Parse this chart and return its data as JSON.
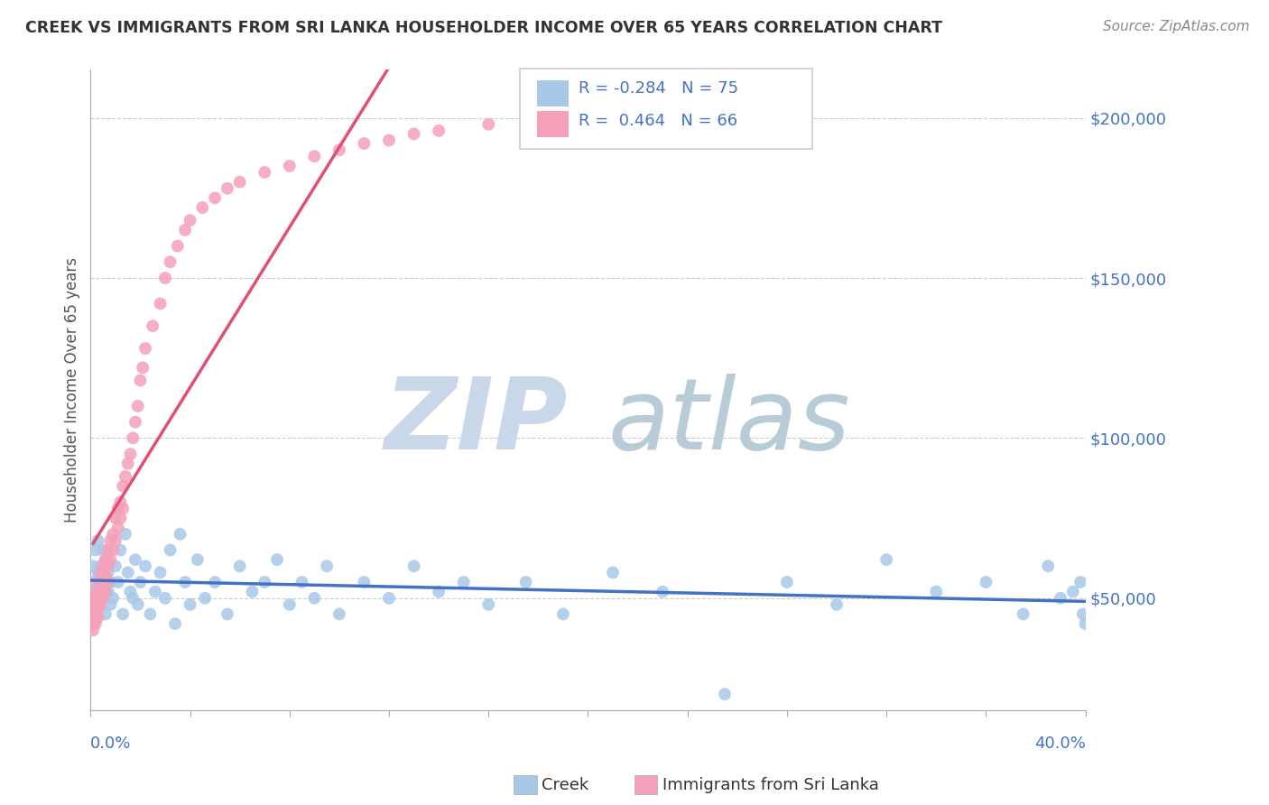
{
  "title": "CREEK VS IMMIGRANTS FROM SRI LANKA HOUSEHOLDER INCOME OVER 65 YEARS CORRELATION CHART",
  "source": "Source: ZipAtlas.com",
  "ylabel": "Householder Income Over 65 years",
  "right_yticks": [
    "$200,000",
    "$150,000",
    "$100,000",
    "$50,000"
  ],
  "right_ytick_vals": [
    200000,
    150000,
    100000,
    50000
  ],
  "xlim": [
    0.0,
    0.4
  ],
  "ylim": [
    15000,
    215000
  ],
  "creek_R": -0.284,
  "creek_N": 75,
  "srilanka_R": 0.464,
  "srilanka_N": 66,
  "creek_color": "#a8c8e8",
  "srilanka_color": "#f5a0b8",
  "creek_line_color": "#4472c4",
  "srilanka_line_color": "#e05070",
  "watermark_zip_color": "#c8d8e8",
  "watermark_atlas_color": "#b8ccd8",
  "creek_x": [
    0.001,
    0.001,
    0.002,
    0.002,
    0.003,
    0.003,
    0.003,
    0.004,
    0.004,
    0.005,
    0.005,
    0.006,
    0.006,
    0.007,
    0.007,
    0.008,
    0.008,
    0.009,
    0.01,
    0.011,
    0.012,
    0.013,
    0.014,
    0.015,
    0.016,
    0.017,
    0.018,
    0.019,
    0.02,
    0.022,
    0.024,
    0.026,
    0.028,
    0.03,
    0.032,
    0.034,
    0.036,
    0.038,
    0.04,
    0.043,
    0.046,
    0.05,
    0.055,
    0.06,
    0.065,
    0.07,
    0.075,
    0.08,
    0.085,
    0.09,
    0.095,
    0.1,
    0.11,
    0.12,
    0.13,
    0.14,
    0.15,
    0.16,
    0.175,
    0.19,
    0.21,
    0.23,
    0.255,
    0.28,
    0.3,
    0.32,
    0.34,
    0.36,
    0.375,
    0.385,
    0.39,
    0.395,
    0.398,
    0.399,
    0.4
  ],
  "creek_y": [
    60000,
    55000,
    65000,
    52000,
    58000,
    68000,
    48000,
    60000,
    50000,
    65000,
    55000,
    45000,
    62000,
    52000,
    58000,
    48000,
    55000,
    50000,
    60000,
    55000,
    65000,
    45000,
    70000,
    58000,
    52000,
    50000,
    62000,
    48000,
    55000,
    60000,
    45000,
    52000,
    58000,
    50000,
    65000,
    42000,
    70000,
    55000,
    48000,
    62000,
    50000,
    55000,
    45000,
    60000,
    52000,
    55000,
    62000,
    48000,
    55000,
    50000,
    60000,
    45000,
    55000,
    50000,
    60000,
    52000,
    55000,
    48000,
    55000,
    45000,
    58000,
    52000,
    20000,
    55000,
    48000,
    62000,
    52000,
    55000,
    45000,
    60000,
    50000,
    52000,
    55000,
    45000,
    42000
  ],
  "srilanka_x": [
    0.001,
    0.001,
    0.001,
    0.001,
    0.001,
    0.002,
    0.002,
    0.002,
    0.002,
    0.003,
    0.003,
    0.003,
    0.003,
    0.004,
    0.004,
    0.004,
    0.005,
    0.005,
    0.005,
    0.006,
    0.006,
    0.006,
    0.007,
    0.007,
    0.007,
    0.008,
    0.008,
    0.009,
    0.009,
    0.01,
    0.01,
    0.011,
    0.011,
    0.012,
    0.012,
    0.013,
    0.013,
    0.014,
    0.015,
    0.016,
    0.017,
    0.018,
    0.019,
    0.02,
    0.021,
    0.022,
    0.025,
    0.028,
    0.03,
    0.032,
    0.035,
    0.038,
    0.04,
    0.045,
    0.05,
    0.055,
    0.06,
    0.07,
    0.08,
    0.09,
    0.1,
    0.11,
    0.12,
    0.13,
    0.14,
    0.16
  ],
  "srilanka_y": [
    50000,
    48000,
    45000,
    42000,
    40000,
    52000,
    48000,
    45000,
    42000,
    55000,
    50000,
    47000,
    44000,
    58000,
    52000,
    48000,
    60000,
    55000,
    50000,
    62000,
    57000,
    52000,
    65000,
    60000,
    55000,
    68000,
    62000,
    70000,
    65000,
    75000,
    68000,
    78000,
    72000,
    80000,
    75000,
    85000,
    78000,
    88000,
    92000,
    95000,
    100000,
    105000,
    110000,
    118000,
    122000,
    128000,
    135000,
    142000,
    150000,
    155000,
    160000,
    165000,
    168000,
    172000,
    175000,
    178000,
    180000,
    183000,
    185000,
    188000,
    190000,
    192000,
    193000,
    195000,
    196000,
    198000
  ]
}
